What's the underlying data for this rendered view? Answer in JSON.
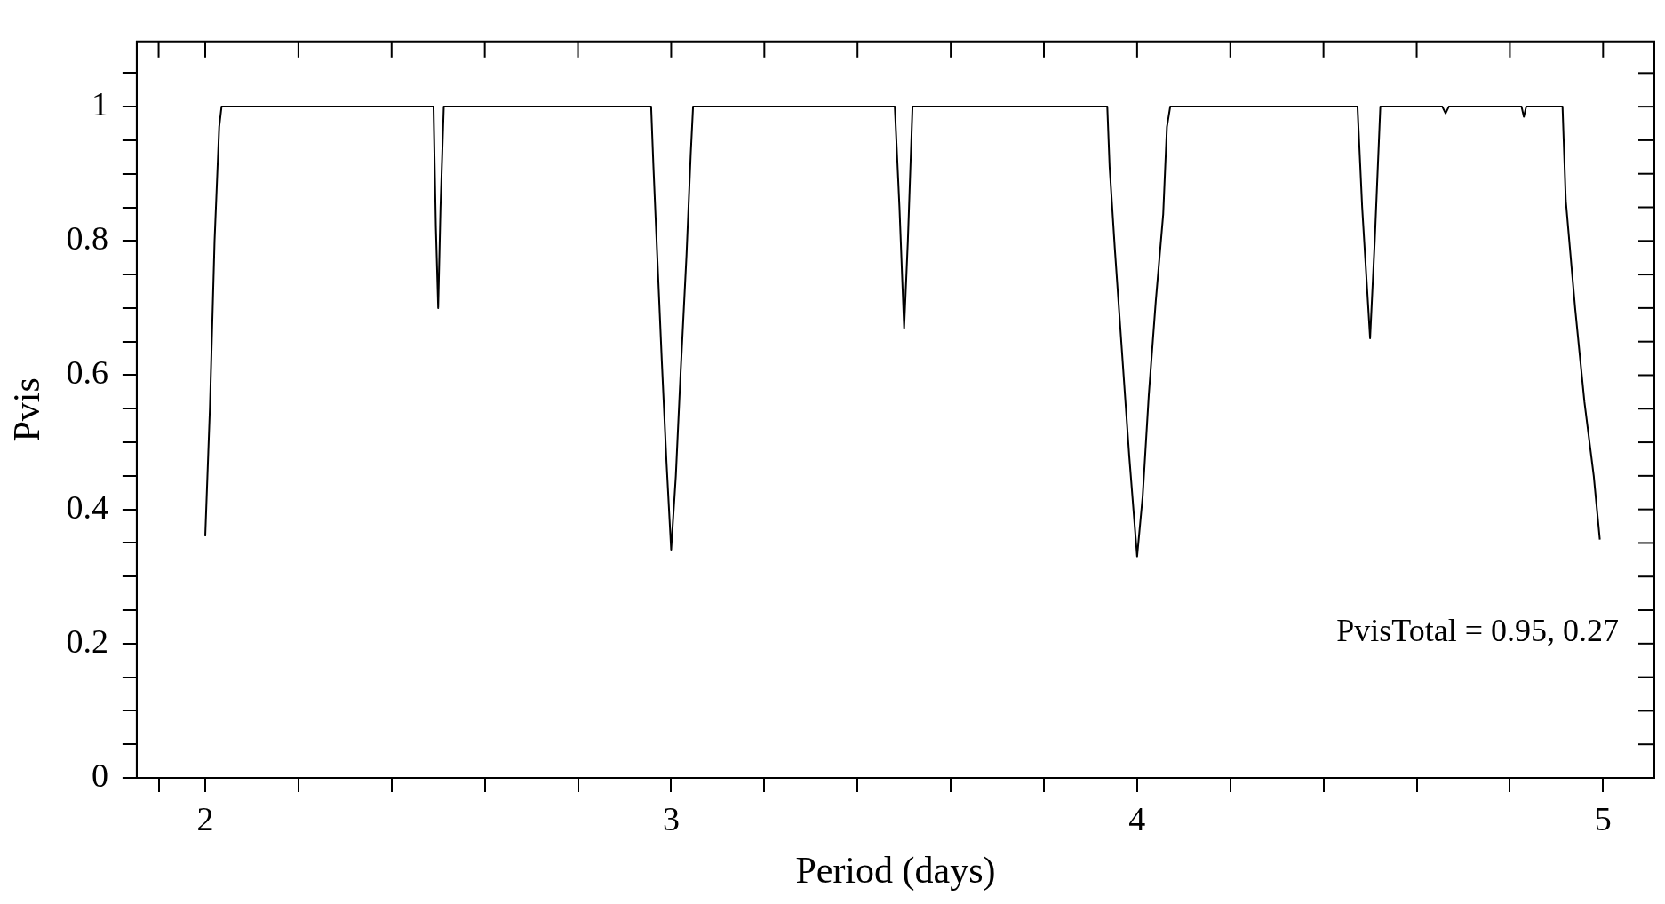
{
  "chart_data": {
    "type": "line",
    "xlabel": "Period (days)",
    "ylabel": "Pvis",
    "color": "#000000",
    "marker": "none",
    "line_style": "solid",
    "x": [
      2.0,
      2.01,
      2.02,
      2.03,
      2.035,
      2.49,
      2.495,
      2.5,
      2.505,
      2.512,
      2.957,
      2.962,
      2.97,
      2.98,
      2.99,
      3.0,
      3.01,
      3.02,
      3.033,
      3.042,
      3.047,
      3.48,
      3.49,
      3.5,
      3.508,
      3.518,
      3.936,
      3.941,
      3.952,
      3.967,
      3.983,
      4.0,
      4.012,
      4.025,
      4.04,
      4.056,
      4.064,
      4.071,
      4.473,
      4.483,
      4.5,
      4.51,
      4.522,
      4.655,
      4.662,
      4.669,
      4.825,
      4.83,
      4.835,
      4.913,
      4.92,
      4.94,
      4.96,
      4.98,
      4.993
    ],
    "values": [
      0.36,
      0.55,
      0.8,
      0.97,
      1,
      1,
      0.82,
      0.7,
      0.85,
      1,
      1,
      0.91,
      0.78,
      0.62,
      0.47,
      0.34,
      0.45,
      0.6,
      0.78,
      0.93,
      1,
      1,
      0.85,
      0.67,
      0.8,
      1,
      1,
      0.91,
      0.79,
      0.64,
      0.48,
      0.33,
      0.42,
      0.57,
      0.71,
      0.84,
      0.97,
      1,
      1,
      0.85,
      0.655,
      0.8,
      1,
      1,
      0.99,
      1,
      1,
      0.985,
      1,
      1,
      0.86,
      0.7,
      0.56,
      0.45,
      0.355
    ],
    "xlim": [
      1.853,
      5.11
    ],
    "ylim": [
      0,
      1.097
    ],
    "xticks": [
      {
        "value": 1.9,
        "label": null
      },
      2,
      {
        "value": 2.2,
        "label": null
      },
      {
        "value": 2.4,
        "label": null
      },
      {
        "value": 2.6,
        "label": null
      },
      {
        "value": 2.8,
        "label": null
      },
      3,
      {
        "value": 3.2,
        "label": null
      },
      {
        "value": 3.4,
        "label": null
      },
      {
        "value": 3.6,
        "label": null
      },
      {
        "value": 3.8,
        "label": null
      },
      4,
      {
        "value": 4.2,
        "label": null
      },
      {
        "value": 4.4,
        "label": null
      },
      {
        "value": 4.6,
        "label": null
      },
      {
        "value": 4.8,
        "label": null
      },
      5
    ],
    "yticks": [
      0,
      {
        "value": 0.05,
        "label": null
      },
      {
        "value": 0.1,
        "label": null
      },
      {
        "value": 0.15,
        "label": null
      },
      0.2,
      {
        "value": 0.25,
        "label": null
      },
      {
        "value": 0.3,
        "label": null
      },
      {
        "value": 0.35,
        "label": null
      },
      0.4,
      {
        "value": 0.45,
        "label": null
      },
      {
        "value": 0.5,
        "label": null
      },
      {
        "value": 0.55,
        "label": null
      },
      0.6,
      {
        "value": 0.65,
        "label": null
      },
      {
        "value": 0.7,
        "label": null
      },
      {
        "value": 0.75,
        "label": null
      },
      0.8,
      {
        "value": 0.85,
        "label": null
      },
      {
        "value": 0.9,
        "label": null
      },
      {
        "value": 0.95,
        "label": null
      },
      1,
      {
        "value": 1.05,
        "label": null
      }
    ],
    "annotations": [
      "PvisTotal = 0.95, 0.27"
    ],
    "legend": false
  }
}
